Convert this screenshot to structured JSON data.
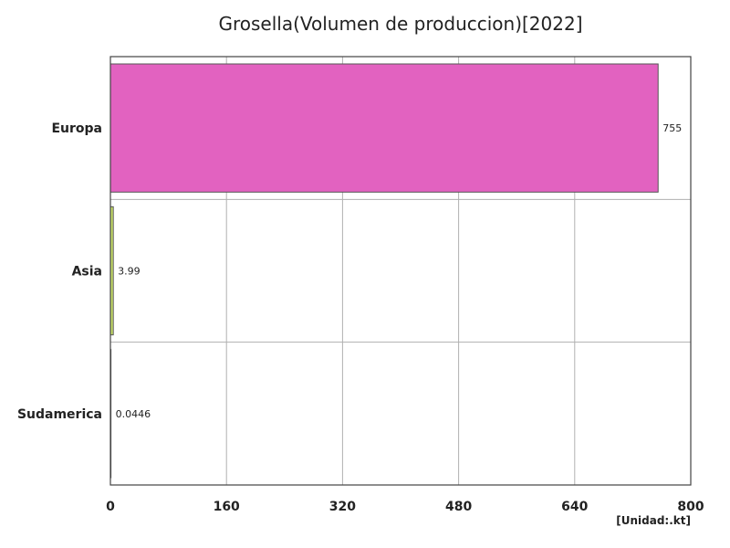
{
  "chart_data": {
    "type": "bar",
    "orientation": "horizontal",
    "title": "Grosella(Volumen de produccion)[2022]",
    "unit_label": "[Unidad:.kt]",
    "categories": [
      "Europa",
      "Asia",
      "Sudamerica"
    ],
    "values": [
      755,
      3.99,
      0.0446
    ],
    "value_labels": [
      "755",
      "3.99",
      "0.0446"
    ],
    "bar_colors": [
      "#e262c0",
      "#c8e06a",
      "#6fc2d8"
    ],
    "xlim": [
      0,
      800
    ],
    "xticks": [
      0,
      160,
      320,
      480,
      640,
      800
    ],
    "grid": true
  }
}
